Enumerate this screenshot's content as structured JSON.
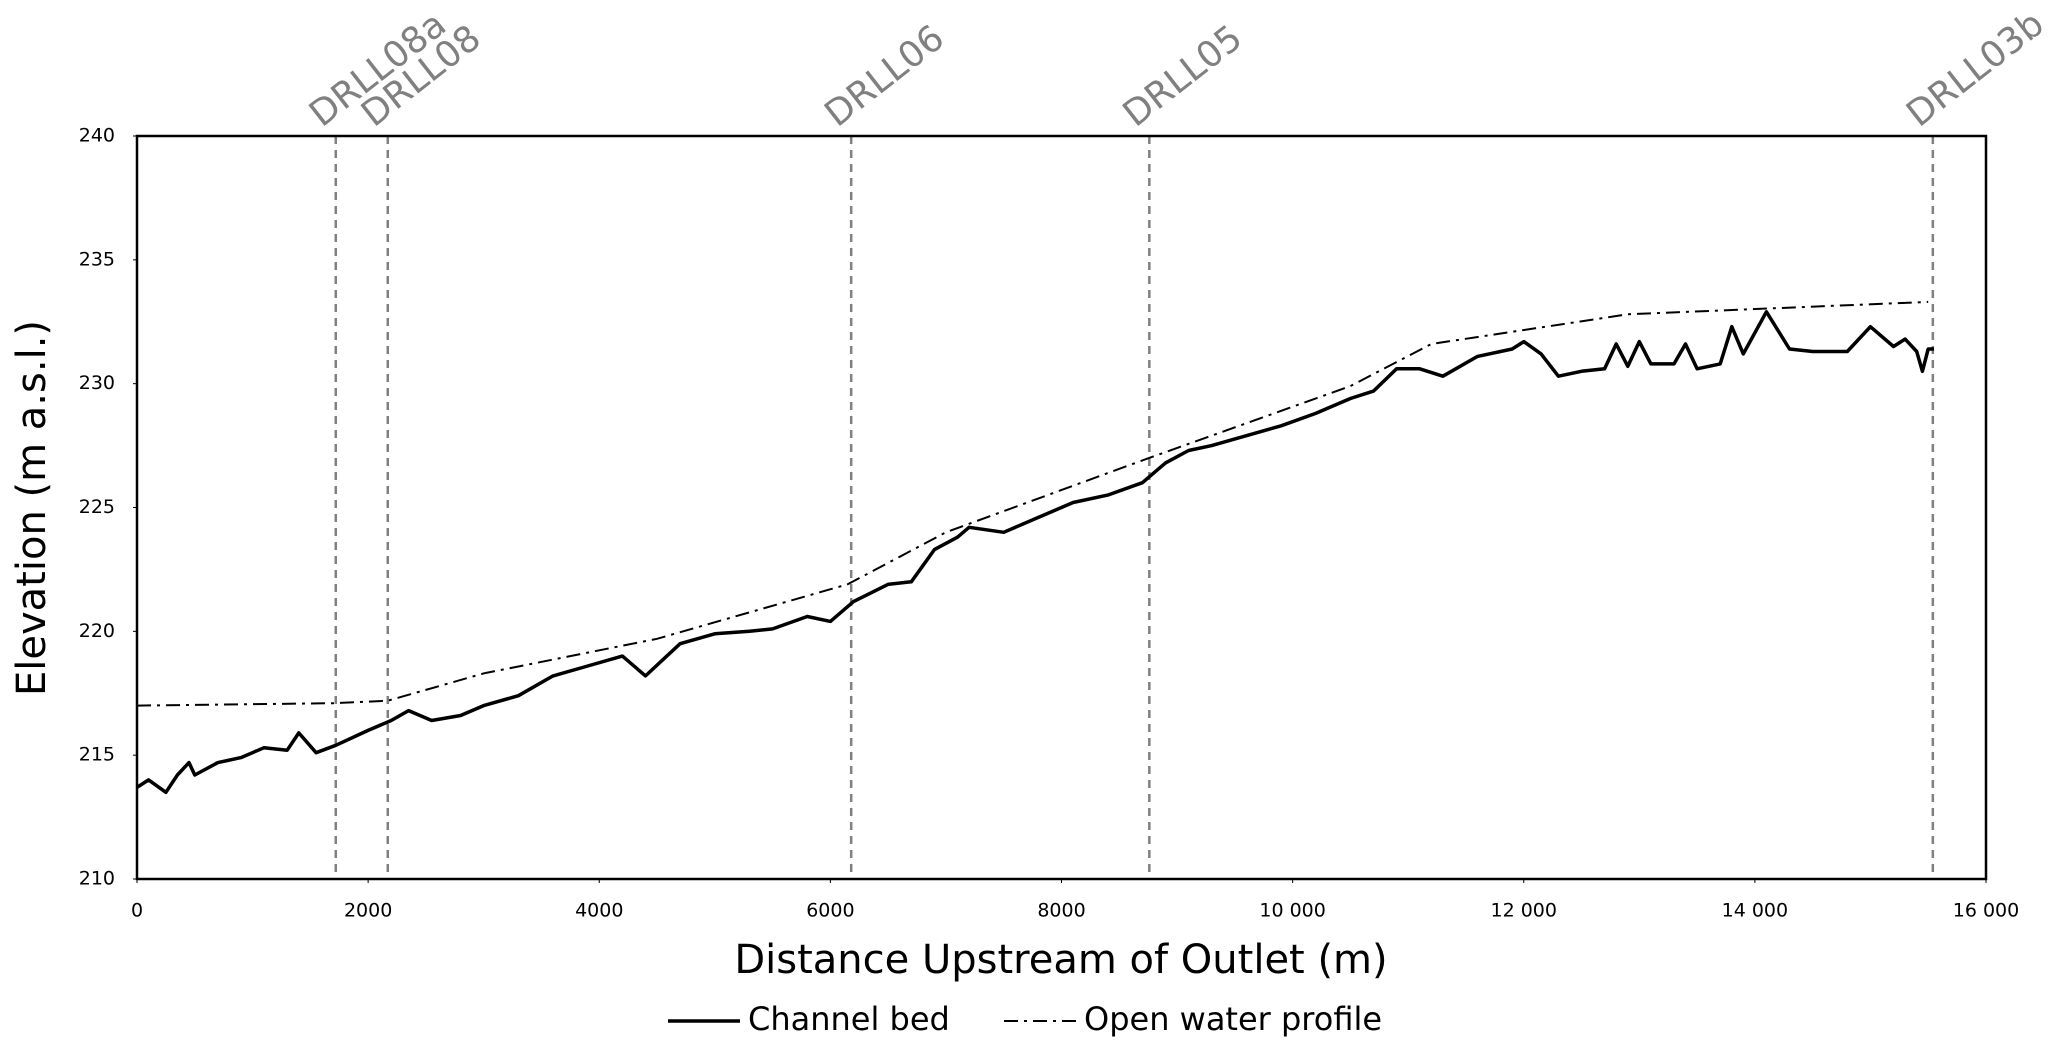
{
  "chart_data": {
    "type": "line",
    "xlabel": "Distance Upstream of Outlet (m)",
    "ylabel": "Elevation (m a.s.l.)",
    "xlim": [
      0,
      16000
    ],
    "ylim": [
      210,
      240
    ],
    "xticks": [
      0,
      2000,
      4000,
      6000,
      8000,
      {
        "value": 10000,
        "label": "10 000"
      },
      {
        "value": 12000,
        "label": "12 000"
      },
      {
        "value": 14000,
        "label": "14 000"
      },
      {
        "value": 16000,
        "label": "16 000"
      }
    ],
    "yticks": [
      210,
      215,
      220,
      225,
      230,
      235,
      240
    ],
    "grid": false,
    "legend": "bottom",
    "reference_lines": [
      {
        "label": "DRLL08a",
        "x": 1720
      },
      {
        "label": "DRLL08",
        "x": 2170
      },
      {
        "label": "DRLL06",
        "x": 6180
      },
      {
        "label": "DRLL05",
        "x": 8760
      },
      {
        "label": "DRLL03b",
        "x": 15540
      }
    ],
    "series": [
      {
        "name": "Channel bed",
        "color": "#000000",
        "style": "solid",
        "x": [
          0,
          100,
          250,
          350,
          450,
          500,
          700,
          900,
          1100,
          1300,
          1400,
          1550,
          1720,
          2000,
          2200,
          2350,
          2550,
          2800,
          3000,
          3300,
          3600,
          3900,
          4200,
          4400,
          4700,
          5000,
          5300,
          5500,
          5800,
          6000,
          6200,
          6500,
          6700,
          6900,
          7100,
          7200,
          7500,
          7800,
          8100,
          8400,
          8700,
          8900,
          9100,
          9300,
          9600,
          9900,
          10200,
          10500,
          10700,
          10900,
          11100,
          11300,
          11600,
          11900,
          12000,
          12150,
          12300,
          12500,
          12700,
          12800,
          12900,
          13000,
          13100,
          13300,
          13400,
          13500,
          13700,
          13800,
          13900,
          14100,
          14300,
          14500,
          14800,
          15000,
          15200,
          15300,
          15400,
          15450,
          15500,
          15550
        ],
        "values": [
          213.7,
          214.0,
          213.5,
          214.2,
          214.7,
          214.2,
          214.7,
          214.9,
          215.3,
          215.2,
          215.9,
          215.1,
          215.4,
          216.0,
          216.4,
          216.8,
          216.4,
          216.6,
          217.0,
          217.4,
          218.2,
          218.6,
          219.0,
          218.2,
          219.5,
          219.9,
          220.0,
          220.1,
          220.6,
          220.4,
          221.2,
          221.9,
          222.0,
          223.3,
          223.8,
          224.2,
          224.0,
          224.6,
          225.2,
          225.5,
          226.0,
          226.8,
          227.3,
          227.5,
          227.9,
          228.3,
          228.8,
          229.4,
          229.7,
          230.6,
          230.6,
          230.3,
          231.1,
          231.4,
          231.7,
          231.2,
          230.3,
          230.5,
          230.6,
          231.6,
          230.7,
          231.7,
          230.8,
          230.8,
          231.6,
          230.6,
          230.8,
          232.3,
          231.2,
          232.9,
          231.4,
          231.3,
          231.3,
          232.3,
          231.5,
          231.8,
          231.3,
          230.5,
          231.4,
          231.4
        ]
      },
      {
        "name": "Open water profile",
        "color": "#000000",
        "style": "dashdot",
        "x": [
          0,
          1700,
          2170,
          3000,
          4500,
          6150,
          7000,
          8700,
          10500,
          11200,
          12900,
          15500
        ],
        "values": [
          217.0,
          217.1,
          217.2,
          218.3,
          219.7,
          221.9,
          224.0,
          226.9,
          229.9,
          231.6,
          232.8,
          233.3
        ]
      }
    ]
  }
}
